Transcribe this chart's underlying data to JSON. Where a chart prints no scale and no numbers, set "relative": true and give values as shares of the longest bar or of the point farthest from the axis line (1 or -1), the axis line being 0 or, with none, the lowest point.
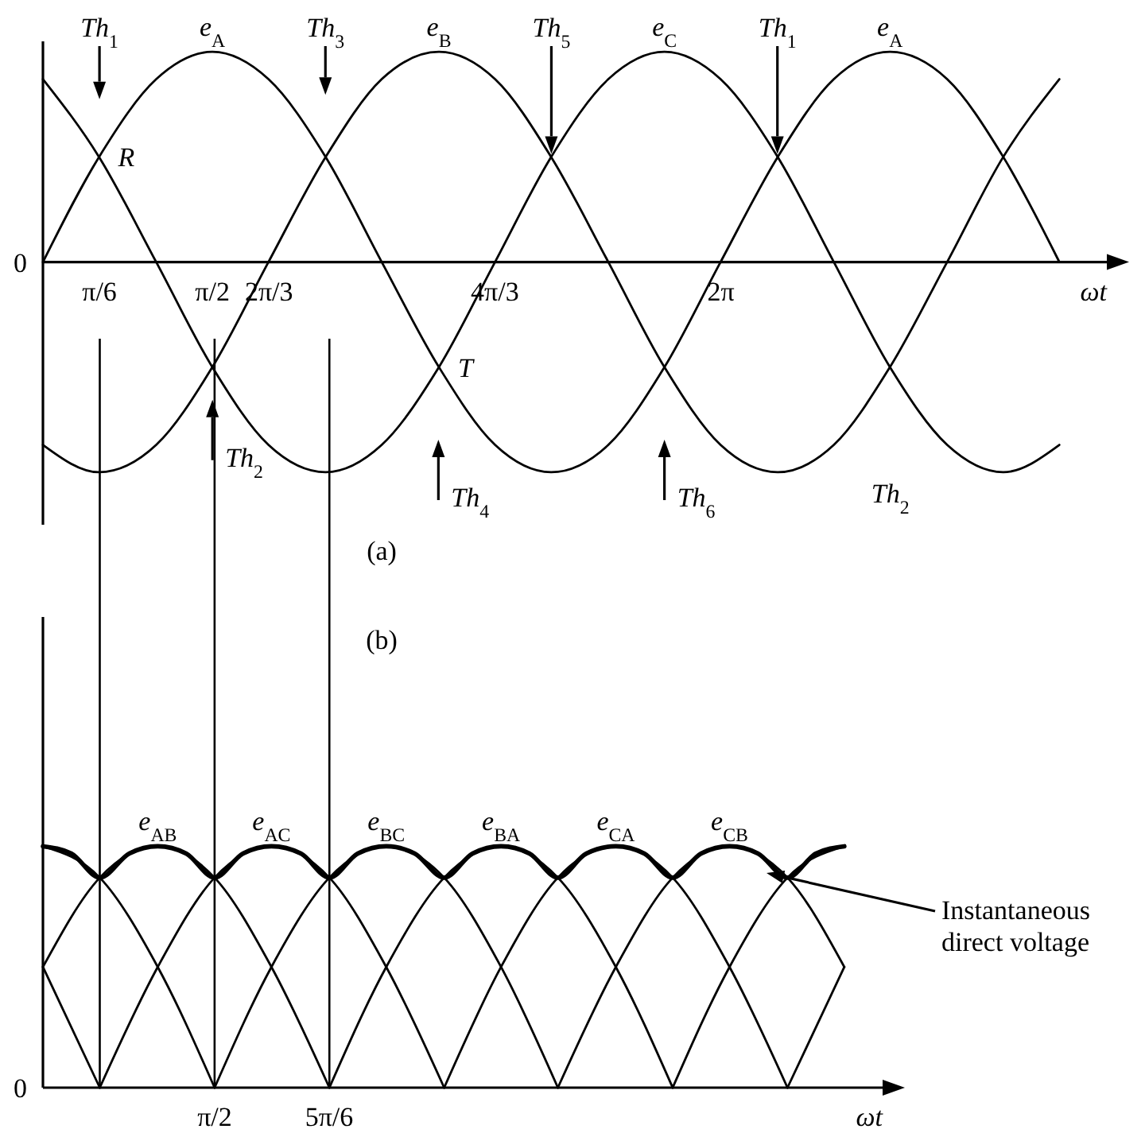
{
  "chart_data": [
    {
      "type": "line",
      "relative": true,
      "tick_labels": "x",
      "xlim": [
        0,
        9.86
      ],
      "ylim": [
        -1.25,
        1.05
      ],
      "xlabel": "ωt",
      "xticks": [
        {
          "value": 0.5236,
          "label": "π/6"
        },
        {
          "value": 1.5708,
          "label": "π/2"
        },
        {
          "value": 2.0944,
          "label": "2π/3"
        },
        {
          "value": 4.1888,
          "label": "4π/3"
        },
        {
          "value": 6.2832,
          "label": "2π"
        }
      ],
      "x": [
        0,
        0.52,
        1.05,
        1.57,
        2.09,
        2.62,
        3.14,
        3.67,
        4.19,
        4.71,
        5.24,
        5.76,
        6.28,
        6.81,
        7.33,
        7.85,
        8.38,
        8.9,
        9.42
      ],
      "series": [
        {
          "name": "e$_{A}$",
          "color": "#000000",
          "values": [
            0,
            0.5,
            0.87,
            1,
            0.87,
            0.5,
            0,
            -0.5,
            -0.87,
            -1,
            -0.87,
            -0.5,
            0,
            0.5,
            0.87,
            1,
            0.87,
            0.5,
            0
          ]
        },
        {
          "name": "e$_{B}$",
          "color": "#000000",
          "values": [
            -0.87,
            -1,
            -0.87,
            -0.5,
            0,
            0.5,
            0.87,
            1,
            0.87,
            0.5,
            0,
            -0.5,
            -0.87,
            -1,
            -0.87,
            -0.5,
            0,
            0.5,
            0.87
          ]
        },
        {
          "name": "e$_{C}$",
          "color": "#000000",
          "values": [
            0.87,
            0.5,
            0,
            -0.5,
            -0.87,
            -1,
            -0.87,
            -0.5,
            0,
            0.5,
            0.87,
            1,
            0.87,
            0.5,
            0,
            -0.5,
            -0.87,
            -1,
            -0.87
          ]
        }
      ],
      "annotations": [
        "Th$_{1}$",
        "Th$_{3}$",
        "Th$_{5}$",
        "Th$_{1}$",
        {
          "text": "e$_{A}$",
          "x": 7.85,
          "y": 1
        },
        {
          "text": "R",
          "x": 0.52,
          "y": 0.5
        },
        {
          "text": "T",
          "x": 3.67,
          "y": -0.5
        },
        "Th$_{2}$",
        "Th$_{4}$",
        "Th$_{6}$",
        "Th$_{2}$",
        "0",
        "(a)"
      ]
    },
    {
      "type": "line",
      "relative": true,
      "tick_labels": "x",
      "xlim": [
        0,
        7.68
      ],
      "ylim": [
        0,
        1.95
      ],
      "xlabel": "ωt",
      "xticks": [
        {
          "value": 1.5708,
          "label": "π/2"
        },
        {
          "value": 2.618,
          "label": "5π/6"
        }
      ],
      "x": [
        0,
        0.52,
        1.05,
        1.57,
        2.09,
        2.62,
        3.14,
        3.67,
        4.19,
        4.71,
        5.24,
        5.76,
        6.28,
        6.81,
        7.33
      ],
      "series": [
        {
          "name": "e$_{AB}$",
          "color": "#000000",
          "values": [
            0.5,
            0.87,
            1,
            0.87,
            0.5,
            0,
            null,
            null,
            null,
            null,
            null,
            0,
            0.5,
            0.87,
            1
          ]
        },
        {
          "name": "e$_{AC}$",
          "color": "#000000",
          "values": [
            null,
            0,
            0.5,
            0.87,
            1,
            0.87,
            0.5,
            0,
            null,
            null,
            null,
            null,
            null,
            0,
            0.5
          ]
        },
        {
          "name": "e$_{BC}$",
          "color": "#000000",
          "values": [
            null,
            null,
            null,
            0,
            0.5,
            0.87,
            1,
            0.87,
            0.5,
            0,
            null,
            null,
            null,
            null,
            null
          ]
        },
        {
          "name": "e$_{BA}$",
          "color": "#000000",
          "values": [
            null,
            null,
            null,
            null,
            null,
            0,
            0.5,
            0.87,
            1,
            0.87,
            0.5,
            0,
            null,
            null,
            null
          ]
        },
        {
          "name": "e$_{CA}$",
          "color": "#000000",
          "values": [
            0.5,
            0,
            null,
            null,
            null,
            null,
            null,
            0,
            0.5,
            0.87,
            1,
            0.87,
            0.5,
            0,
            null
          ]
        },
        {
          "name": "e$_{CB}$",
          "color": "#000000",
          "values": [
            1,
            0.87,
            0.5,
            0,
            null,
            null,
            null,
            null,
            null,
            0,
            0.5,
            0.87,
            1,
            0.87,
            0.5
          ]
        },
        {
          "color": "#000000",
          "x": [
            0,
            0.26,
            0.52,
            0.79,
            1.05,
            1.31,
            1.57,
            1.83,
            2.09,
            2.36,
            2.62,
            2.88,
            3.14,
            3.4,
            3.67,
            3.93,
            4.19,
            4.45,
            4.71,
            4.97,
            5.24,
            5.5,
            5.76,
            6.02,
            6.28,
            6.54,
            6.81,
            7.07,
            7.33
          ],
          "values": [
            1,
            0.97,
            0.87,
            0.97,
            1,
            0.97,
            0.87,
            0.97,
            1,
            0.97,
            0.87,
            0.97,
            1,
            0.97,
            0.87,
            0.97,
            1,
            0.97,
            0.87,
            0.97,
            1,
            0.97,
            0.87,
            0.97,
            1,
            0.97,
            0.87,
            0.97,
            1
          ]
        }
      ],
      "ref_lines": [
        {
          "axis": "x",
          "value": 0.52
        },
        {
          "axis": "x",
          "value": 1.57
        },
        {
          "axis": "x",
          "value": 2.62
        }
      ],
      "annotations": [
        "0",
        "(b)",
        "Instantaneous direct voltage"
      ]
    }
  ]
}
